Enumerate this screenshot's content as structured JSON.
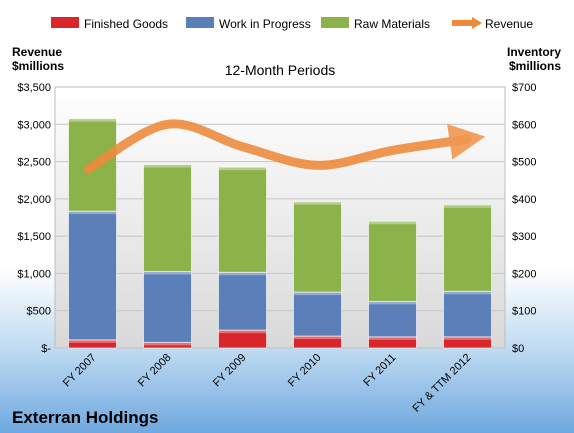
{
  "chart_data": {
    "type": "bar",
    "stacked": true,
    "title": "12-Month Periods",
    "caption": "Exterran Holdings",
    "y_left_label": [
      "Revenue",
      "$millions"
    ],
    "y_right_label": [
      "Inventory",
      "$millions"
    ],
    "categories": [
      "FY 2007",
      "FY 2008",
      "FY 2009",
      "FY 2010",
      "FY 2011",
      "FY & TTM 2012"
    ],
    "y_left_ticks": [
      "$-",
      "$500",
      "$1,000",
      "$1,500",
      "$2,000",
      "$2,500",
      "$3,000",
      "$3,500"
    ],
    "y_right_ticks": [
      "$0",
      "$100",
      "$200",
      "$300",
      "$400",
      "$500",
      "$600",
      "$700"
    ],
    "ylim_left": [
      0,
      3500
    ],
    "ylim_right": [
      0,
      700
    ],
    "series": [
      {
        "name": "Finished Goods",
        "axis": "right",
        "color": "#d9262b",
        "values": [
          22,
          15,
          48,
          32,
          30,
          30
        ]
      },
      {
        "name": "Work in Progress",
        "axis": "right",
        "color": "#5b7fb8",
        "values": [
          345,
          190,
          155,
          118,
          95,
          122
        ]
      },
      {
        "name": "Raw Materials",
        "axis": "right",
        "color": "#8cb24a",
        "values": [
          248,
          287,
          282,
          242,
          215,
          232
        ]
      },
      {
        "name": "Revenue",
        "axis": "left",
        "color": "#ee8a3a",
        "type": "line",
        "values": [
          2400,
          3000,
          2700,
          2450,
          2650,
          2800
        ]
      }
    ],
    "legend_position": "top",
    "grid": true
  }
}
